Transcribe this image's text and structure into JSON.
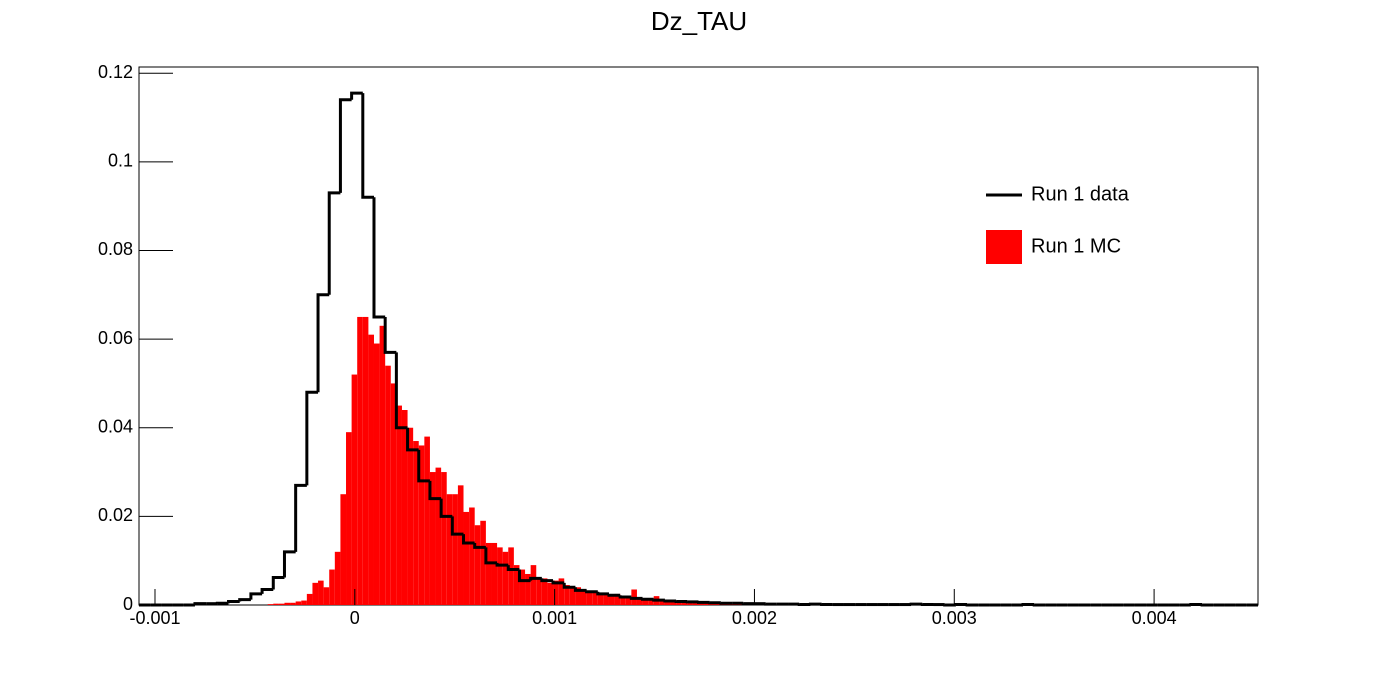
{
  "chart_data": {
    "type": "histogram",
    "title": "Dz_TAU",
    "xlim": [
      -0.00108,
      0.00452
    ],
    "ylim": [
      0,
      0.1214
    ],
    "xticks": [
      -0.001,
      0,
      0.001,
      0.002,
      0.003,
      0.004
    ],
    "yticks": [
      0,
      0.02,
      0.04,
      0.06,
      0.08,
      0.1,
      0.12
    ],
    "legend": "upper right",
    "series": [
      {
        "name": "Run 1 MC",
        "color": "#ff0000",
        "style": "fill",
        "bins": [
          -0.00108,
          -0.001052,
          -0.001024,
          -0.000996,
          -0.000968,
          -0.00094,
          -0.000912,
          -0.000884,
          -0.000856,
          -0.000828,
          -0.0008,
          -0.000772,
          -0.000744,
          -0.000716,
          -0.000688,
          -0.00066,
          -0.000632,
          -0.000604,
          -0.000576,
          -0.000548,
          -0.00052,
          -0.000492,
          -0.000464,
          -0.000436,
          -0.000408,
          -0.00038,
          -0.000352,
          -0.000324,
          -0.000296,
          -0.000268,
          -0.00024,
          -0.000212,
          -0.000184,
          -0.000156,
          -0.000128,
          -0.0001,
          -7.2e-05,
          -4.4e-05,
          -1.6e-05,
          1.2e-05,
          4e-05,
          6.8e-05,
          9.6e-05,
          0.000124,
          0.000152,
          0.00018,
          0.000208,
          0.000236,
          0.000264,
          0.000292,
          0.00032,
          0.000348,
          0.000376,
          0.000404,
          0.000432,
          0.00046,
          0.000488,
          0.000516,
          0.000544,
          0.000572,
          0.0006,
          0.000628,
          0.000656,
          0.000684,
          0.000712,
          0.00074,
          0.000768,
          0.000796,
          0.000824,
          0.000852,
          0.00088,
          0.000908,
          0.000936,
          0.000964,
          0.000992,
          0.00102,
          0.001048,
          0.001076,
          0.001104,
          0.001132,
          0.00116,
          0.001188,
          0.001216,
          0.001244,
          0.001272,
          0.0013,
          0.001328,
          0.001356,
          0.001384,
          0.001412,
          0.00144,
          0.001468,
          0.001496,
          0.001524,
          0.001552,
          0.00158,
          0.001608,
          0.001636,
          0.001664,
          0.001692,
          0.00172,
          0.001748,
          0.001776,
          0.001804,
          0.001832,
          0.00186,
          0.001888,
          0.001916,
          0.001944,
          0.001972,
          0.002,
          0.002028,
          0.002056,
          0.002084,
          0.002112,
          0.00214,
          0.002168,
          0.002196,
          0.002224,
          0.002252,
          0.00228,
          0.002308,
          0.002336,
          0.002364,
          0.002392,
          0.00242,
          0.002448,
          0.002476,
          0.002504,
          0.002532,
          0.00256,
          0.002588,
          0.002616,
          0.002644,
          0.002672,
          0.0027,
          0.002728,
          0.002756,
          0.002784,
          0.002812,
          0.00284,
          0.002868,
          0.002896,
          0.002924,
          0.002952,
          0.00298,
          0.003008,
          0.003036,
          0.003064,
          0.003092,
          0.00312,
          0.003148,
          0.003176,
          0.003204,
          0.003232,
          0.00326,
          0.003288,
          0.003316,
          0.003344,
          0.003372,
          0.0034,
          0.003428,
          0.003456,
          0.003484,
          0.003512,
          0.00354,
          0.003568,
          0.003596,
          0.003624,
          0.003652,
          0.00368,
          0.003708,
          0.003736,
          0.003764,
          0.003792,
          0.00382,
          0.003848,
          0.003876,
          0.003904,
          0.003932,
          0.00396,
          0.003988,
          0.004016,
          0.004044,
          0.004072,
          0.0041,
          0.004128,
          0.004156,
          0.004184,
          0.004212,
          0.00424,
          0.004268,
          0.004296,
          0.004324,
          0.004352,
          0.00438,
          0.004408,
          0.004436,
          0.004464,
          0.004492,
          0.00452
        ],
        "values": [
          0,
          0,
          0,
          0,
          0,
          0,
          0,
          0,
          0,
          0,
          0,
          0,
          0,
          0,
          0,
          0,
          0,
          0,
          0,
          0,
          0,
          0,
          0,
          0.0002,
          0.0003,
          0.0003,
          0.0005,
          0.0005,
          0.0008,
          0.001,
          0.0025,
          0.005,
          0.0055,
          0.004,
          0.008,
          0.012,
          0.025,
          0.039,
          0.052,
          0.065,
          0.065,
          0.061,
          0.059,
          0.063,
          0.054,
          0.05,
          0.045,
          0.044,
          0.04,
          0.037,
          0.036,
          0.038,
          0.03,
          0.031,
          0.03,
          0.025,
          0.025,
          0.027,
          0.021,
          0.022,
          0.018,
          0.019,
          0.014,
          0.014,
          0.013,
          0.012,
          0.013,
          0.009,
          0.008,
          0.007,
          0.009,
          0.006,
          0.006,
          0.005,
          0.0055,
          0.006,
          0.0045,
          0.004,
          0.004,
          0.0035,
          0.003,
          0.003,
          0.0027,
          0.0025,
          0.002,
          0.0025,
          0.0018,
          0.0015,
          0.0035,
          0.0015,
          0.0013,
          0.0012,
          0.002,
          0.0012,
          0.001,
          0.0008,
          0.0009,
          0.0007,
          0.0005,
          0.0006,
          0.0004,
          0.0005,
          0.0003,
          0.0004,
          0.0003,
          0.0003,
          0.0002,
          0.0002,
          0.0002,
          0.0001,
          0,
          0,
          0,
          0,
          0,
          0,
          0,
          0,
          0,
          0,
          0,
          0,
          0,
          0,
          0,
          0,
          0,
          0,
          0,
          0,
          0,
          0,
          0,
          0,
          0,
          0,
          0,
          0,
          0,
          0,
          0,
          0,
          0,
          0,
          0,
          0,
          0,
          0,
          0,
          0,
          0,
          0,
          0,
          0,
          0,
          0,
          0,
          0,
          0,
          0,
          0,
          0,
          0,
          0,
          0,
          0,
          0,
          0,
          0,
          0,
          0,
          0,
          0,
          0,
          0,
          0,
          0,
          0,
          0,
          0,
          0,
          0,
          0,
          0,
          0,
          0,
          0,
          0,
          0,
          0,
          0,
          0,
          0,
          0,
          0,
          0,
          0,
          0,
          0,
          0
        ]
      },
      {
        "name": "Run 1 data",
        "color": "#000000",
        "style": "step",
        "bins": [
          -0.00108,
          -0.001024,
          -0.000968,
          -0.000912,
          -0.000856,
          -0.0008,
          -0.000744,
          -0.000688,
          -0.000632,
          -0.000576,
          -0.00052,
          -0.000464,
          -0.000408,
          -0.000352,
          -0.000296,
          -0.00024,
          -0.000184,
          -0.000128,
          -7.2e-05,
          -1.6e-05,
          4e-05,
          9.6e-05,
          0.000152,
          0.000208,
          0.000264,
          0.00032,
          0.000376,
          0.000432,
          0.000488,
          0.000544,
          0.0006,
          0.000656,
          0.000712,
          0.000768,
          0.000824,
          0.00088,
          0.000936,
          0.000992,
          0.001048,
          0.001104,
          0.00116,
          0.001216,
          0.001272,
          0.001328,
          0.001384,
          0.00144,
          0.001496,
          0.001552,
          0.001608,
          0.001664,
          0.00172,
          0.001776,
          0.001832,
          0.001888,
          0.001944,
          0.002,
          0.002056,
          0.002112,
          0.002168,
          0.002224,
          0.00228,
          0.002336,
          0.002392,
          0.002448,
          0.002504,
          0.00256,
          0.002616,
          0.002672,
          0.002728,
          0.002784,
          0.00284,
          0.002896,
          0.002952,
          0.003008,
          0.003064,
          0.00312,
          0.003176,
          0.003232,
          0.003288,
          0.003344,
          0.0034,
          0.003456,
          0.003512,
          0.003568,
          0.003624,
          0.00368,
          0.003736,
          0.003792,
          0.003848,
          0.003904,
          0.00396,
          0.004016,
          0.004072,
          0.004128,
          0.004184,
          0.00424,
          0.004296,
          0.004352,
          0.004408,
          0.004464,
          0.00452
        ],
        "values": [
          0,
          0,
          0,
          0,
          0,
          0.0003,
          0.0003,
          0.0004,
          0.0008,
          0.0012,
          0.0025,
          0.0035,
          0.0062,
          0.012,
          0.027,
          0.048,
          0.07,
          0.093,
          0.114,
          0.1155,
          0.092,
          0.065,
          0.057,
          0.04,
          0.035,
          0.028,
          0.024,
          0.02,
          0.016,
          0.014,
          0.013,
          0.0095,
          0.009,
          0.008,
          0.0055,
          0.006,
          0.0055,
          0.005,
          0.004,
          0.0033,
          0.003,
          0.0025,
          0.0022,
          0.0018,
          0.0015,
          0.0013,
          0.0011,
          0.0009,
          0.0008,
          0.0007,
          0.0006,
          0.0005,
          0.0004,
          0.0004,
          0.0003,
          0.0003,
          0.0002,
          0.0002,
          0.0002,
          0.0001,
          0.0002,
          0.0001,
          0.0001,
          0.0001,
          0.0001,
          0.0001,
          0.0001,
          0.0001,
          0.0001,
          0.0002,
          0.0001,
          0.0001,
          0,
          0.0001,
          0,
          0,
          0,
          0,
          0,
          0.0001,
          0,
          0,
          0,
          0,
          0,
          0,
          0,
          0,
          0,
          0,
          0,
          0,
          0,
          0,
          0.0001,
          0,
          0,
          0,
          0,
          0
        ]
      }
    ]
  }
}
